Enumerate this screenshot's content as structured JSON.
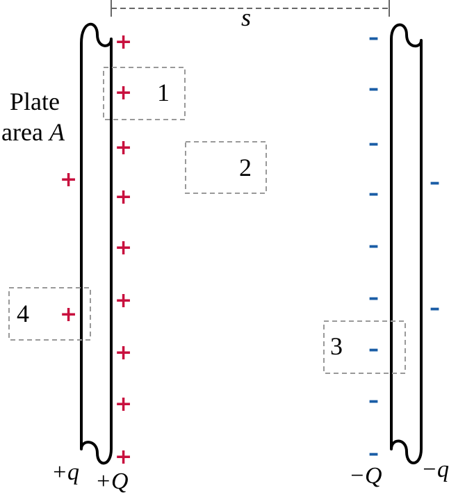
{
  "colors": {
    "positive": "#c8103e",
    "negative": "#1a5da6",
    "line": "#000000",
    "dash": "#999999",
    "dim": "#666666"
  },
  "labels": {
    "separation": "s",
    "plate_area_line1": "Plate",
    "plate_area_line2_prefix": "area ",
    "plate_area_line2_var": "A",
    "left_outer_charge": "+q",
    "left_inner_charge": "+Q",
    "right_inner_charge": "−Q",
    "right_outer_charge": "−q"
  },
  "regions": [
    {
      "label": "1"
    },
    {
      "label": "2"
    },
    {
      "label": "3"
    },
    {
      "label": "4"
    }
  ],
  "symbols": {
    "plus": "+",
    "minus": "–"
  }
}
